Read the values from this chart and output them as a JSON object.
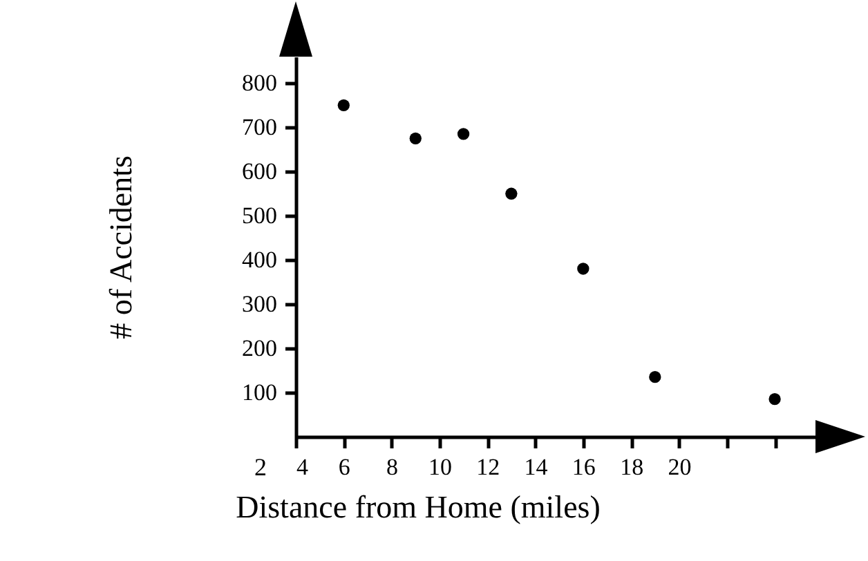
{
  "chart_data": {
    "type": "scatter",
    "xlabel": "Distance from Home (miles)",
    "ylabel": "# of Accidents",
    "x": [
      6,
      9,
      11,
      13,
      16,
      19,
      24
    ],
    "values": [
      750,
      675,
      685,
      550,
      380,
      135,
      85
    ],
    "color": "#000000",
    "marker": "circle",
    "xlim": [
      4,
      25.7
    ],
    "xticks": [
      4,
      6,
      8,
      10,
      12,
      14,
      16,
      18,
      20,
      {
        "value": 22,
        "label": null
      },
      {
        "value": 24,
        "label": null
      }
    ],
    "ylim": [
      0,
      860
    ],
    "yticks": [
      100,
      200,
      300,
      400,
      500,
      600,
      700,
      800
    ],
    "grid": false,
    "annotations": [
      "2"
    ]
  }
}
